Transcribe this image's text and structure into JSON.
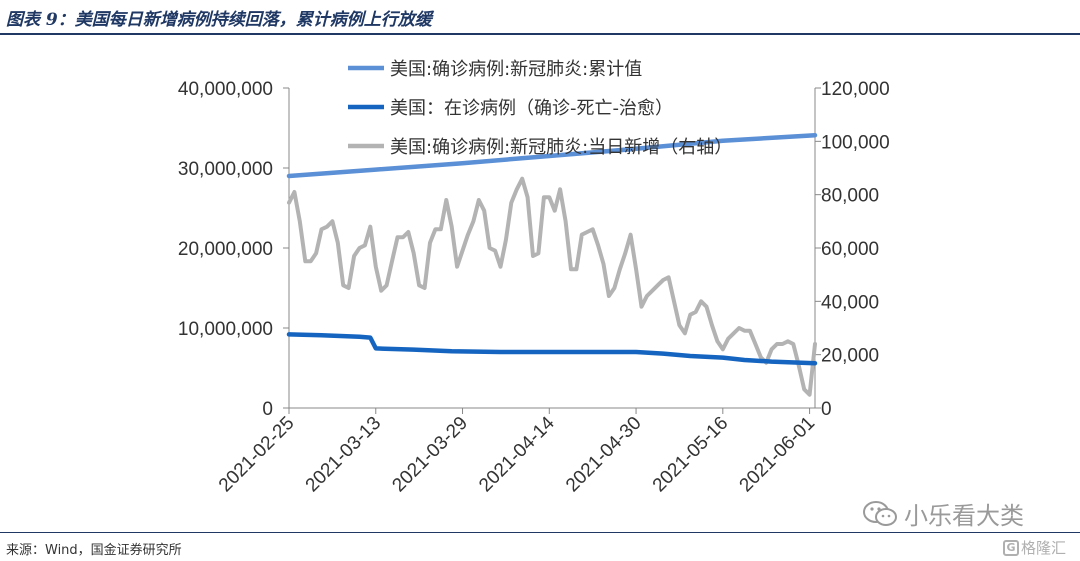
{
  "title": "图表 9：美国每日新增病例持续回落，累计病例上行放缓",
  "source": "来源：Wind，国金证券研究所",
  "watermark": "小乐看大类",
  "brand": "格隆汇",
  "brand_initial": "G",
  "icons": {
    "watermark": "wechat-icon",
    "brand": "brand-logo-icon"
  },
  "colors": {
    "title": "#1f3864",
    "cumulative": "#5b8fd6",
    "active": "#1565c0",
    "daily": "#b3b3b3"
  },
  "chart_data": {
    "type": "line",
    "x_tick_labels": [
      "2021-02-25",
      "2021-03-13",
      "2021-03-29",
      "2021-04-14",
      "2021-04-30",
      "2021-05-16",
      "2021-06-01"
    ],
    "x_range": [
      "2021-02-25",
      "2021-06-02"
    ],
    "left_axis": {
      "ticks": [
        "0",
        "10,000,000",
        "20,000,000",
        "30,000,000",
        "40,000,000"
      ],
      "range": [
        0,
        40000000
      ]
    },
    "right_axis": {
      "ticks": [
        "0",
        "20,000",
        "40,000",
        "60,000",
        "80,000",
        "100,000",
        "120,000"
      ],
      "range": [
        0,
        120000
      ]
    },
    "legend_placement": "top-center",
    "series": [
      {
        "name": "美国:确诊病例:新冠肺炎:累计值",
        "axis": "left",
        "x": [
          "2021-02-25",
          "2021-03-13",
          "2021-03-29",
          "2021-04-14",
          "2021-04-30",
          "2021-05-16",
          "2021-06-02"
        ],
        "y": [
          29000000,
          29800000,
          30600000,
          31500000,
          32400000,
          33400000,
          34100000
        ]
      },
      {
        "name": "美国：在诊病例（确诊-死亡-治愈）",
        "axis": "left",
        "x": [
          "2021-02-25",
          "2021-03-03",
          "2021-03-10",
          "2021-03-12",
          "2021-03-13",
          "2021-03-20",
          "2021-03-27",
          "2021-04-05",
          "2021-04-14",
          "2021-04-30",
          "2021-05-05",
          "2021-05-10",
          "2021-05-16",
          "2021-05-20",
          "2021-05-25",
          "2021-06-02"
        ],
        "y": [
          9200000,
          9100000,
          8900000,
          8800000,
          7450000,
          7300000,
          7100000,
          7000000,
          7000000,
          7000000,
          6800000,
          6500000,
          6300000,
          6000000,
          5800000,
          5600000
        ]
      },
      {
        "name": "美国:确诊病例:新冠肺炎:当日新增（右轴）",
        "axis": "right",
        "x": [
          "2021-02-25",
          "2021-02-26",
          "2021-02-27",
          "2021-02-28",
          "2021-03-01",
          "2021-03-02",
          "2021-03-03",
          "2021-03-04",
          "2021-03-05",
          "2021-03-06",
          "2021-03-07",
          "2021-03-08",
          "2021-03-09",
          "2021-03-10",
          "2021-03-11",
          "2021-03-12",
          "2021-03-13",
          "2021-03-14",
          "2021-03-15",
          "2021-03-16",
          "2021-03-17",
          "2021-03-18",
          "2021-03-19",
          "2021-03-20",
          "2021-03-21",
          "2021-03-22",
          "2021-03-23",
          "2021-03-24",
          "2021-03-25",
          "2021-03-26",
          "2021-03-27",
          "2021-03-28",
          "2021-03-29",
          "2021-03-30",
          "2021-03-31",
          "2021-04-01",
          "2021-04-02",
          "2021-04-03",
          "2021-04-04",
          "2021-04-05",
          "2021-04-06",
          "2021-04-07",
          "2021-04-08",
          "2021-04-09",
          "2021-04-10",
          "2021-04-11",
          "2021-04-12",
          "2021-04-13",
          "2021-04-14",
          "2021-04-15",
          "2021-04-16",
          "2021-04-17",
          "2021-04-18",
          "2021-04-19",
          "2021-04-20",
          "2021-04-21",
          "2021-04-22",
          "2021-04-23",
          "2021-04-24",
          "2021-04-25",
          "2021-04-26",
          "2021-04-27",
          "2021-04-28",
          "2021-04-29",
          "2021-04-30",
          "2021-05-01",
          "2021-05-02",
          "2021-05-03",
          "2021-05-04",
          "2021-05-05",
          "2021-05-06",
          "2021-05-07",
          "2021-05-08",
          "2021-05-09",
          "2021-05-10",
          "2021-05-11",
          "2021-05-12",
          "2021-05-13",
          "2021-05-14",
          "2021-05-15",
          "2021-05-16",
          "2021-05-17",
          "2021-05-18",
          "2021-05-19",
          "2021-05-20",
          "2021-05-21",
          "2021-05-22",
          "2021-05-23",
          "2021-05-24",
          "2021-05-25",
          "2021-05-26",
          "2021-05-27",
          "2021-05-28",
          "2021-05-29",
          "2021-05-30",
          "2021-05-31",
          "2021-06-01",
          "2021-06-02"
        ],
        "y": [
          77000,
          81000,
          70000,
          55000,
          55000,
          58000,
          67000,
          68000,
          70000,
          62000,
          46000,
          45000,
          57000,
          60000,
          61000,
          68000,
          53000,
          44000,
          46000,
          55000,
          64000,
          64000,
          66000,
          58000,
          46000,
          45000,
          62000,
          67000,
          67000,
          78000,
          68000,
          53000,
          59000,
          65000,
          70000,
          78000,
          74000,
          60000,
          59000,
          53000,
          63000,
          77000,
          82000,
          86000,
          79000,
          57000,
          58000,
          79000,
          79000,
          74000,
          82000,
          70000,
          52000,
          52000,
          65000,
          66000,
          67000,
          61000,
          54000,
          42000,
          45000,
          52000,
          58000,
          65000,
          52000,
          38000,
          42000,
          44000,
          46000,
          48000,
          49000,
          40000,
          31000,
          28000,
          35000,
          36000,
          40000,
          38000,
          31000,
          25000,
          22000,
          26000,
          28000,
          30000,
          29000,
          29000,
          24000,
          19000,
          17000,
          22000,
          24000,
          24000,
          25000,
          24000,
          16000,
          7000,
          5000,
          24000
        ]
      }
    ]
  }
}
